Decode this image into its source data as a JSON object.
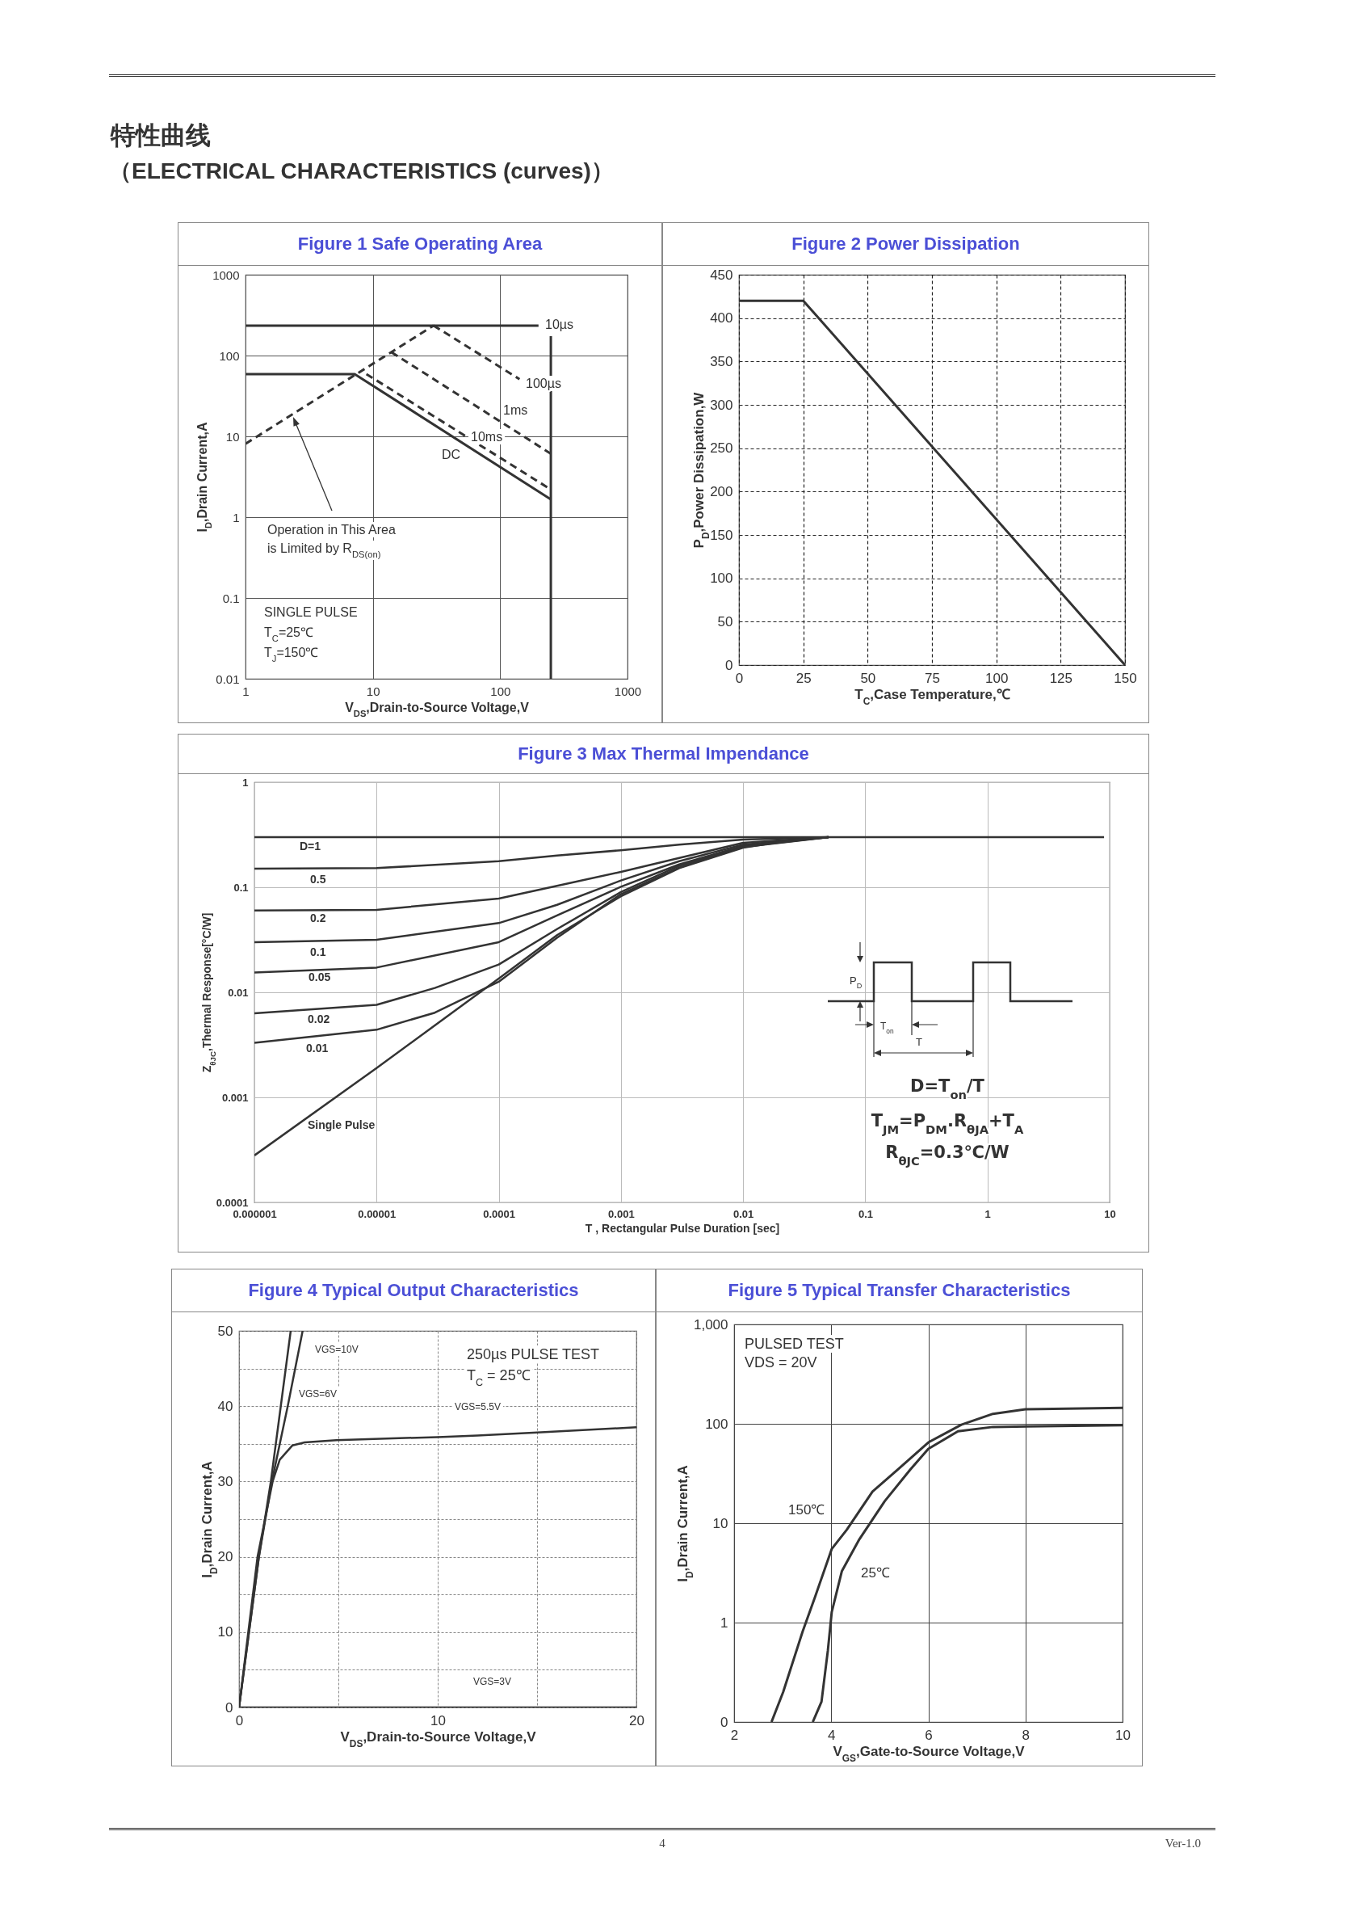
{
  "chart_data": [
    {
      "type": "other",
      "title": "特性曲线",
      "subtitle": "（ELECTRICAL CHARACTERISTICS (curves)）"
    },
    {
      "type": "line",
      "title": "Figure 1 Safe Operating Area",
      "xlabel": "V$_{DS}$,Drain-to-Source Voltage,V",
      "ylabel": "I$_{D}$,Drain Current,A",
      "log": "xy",
      "xlim": [
        1,
        1000
      ],
      "ylim": [
        0.01,
        1000
      ],
      "xticks": [
        1,
        10,
        100,
        1000
      ],
      "yticks": [
        0.01,
        0.1,
        1,
        10,
        100,
        1000
      ],
      "grid": true,
      "series": [
        {
          "color": "#333333",
          "line_style": "dashed",
          "x": [
            1,
            30
          ],
          "values": [
            8.1,
            235
          ]
        },
        {
          "color": "#333333",
          "x": [
            1,
            200
          ],
          "values": [
            235,
            235
          ]
        },
        {
          "color": "#333333",
          "line_style": "dashed",
          "x": [
            30,
            142
          ],
          "values": [
            235,
            51
          ]
        },
        {
          "color": "#333333",
          "line_style": "dashed",
          "x": [
            14,
            250
          ],
          "values": [
            110,
            6.1
          ]
        },
        {
          "color": "#333333",
          "line_style": "dashed",
          "x": [
            8.9,
            250
          ],
          "values": [
            59,
            2.2
          ]
        },
        {
          "color": "#333333",
          "x": [
            1,
            7.2,
            250
          ],
          "values": [
            59,
            59,
            1.66
          ]
        },
        {
          "color": "#333333",
          "x": [
            250,
            250
          ],
          "values": [
            0.01,
            174
          ]
        }
      ],
      "annotations": [
        "10µs",
        "100µs",
        "1ms",
        "10ms",
        "DC",
        "Operation in This Area",
        "is Limited by R$_{DS(on)}$",
        "SINGLE PULSE",
        "T$_{C}$=25℃",
        "T$_{J}$=150℃"
      ]
    },
    {
      "type": "line",
      "title": "Figure 2 Power Dissipation",
      "xlabel": "T$_{C}$,Case Temperature,℃",
      "ylabel": "P$_{D}$,Power Dissipation,W",
      "xlim": [
        0,
        150
      ],
      "ylim": [
        0,
        450
      ],
      "xticks": [
        0,
        25,
        50,
        75,
        100,
        125,
        150
      ],
      "yticks": [
        0,
        50,
        100,
        150,
        200,
        250,
        300,
        350,
        400,
        450
      ],
      "grid": true,
      "series": [
        {
          "color": "#333333",
          "x": [
            0,
            25,
            150
          ],
          "values": [
            420,
            420,
            0
          ]
        }
      ]
    },
    {
      "type": "line",
      "title": "Figure 3 Max Thermal Impendance",
      "xlabel": "T , Rectangular Pulse Duration [sec]",
      "ylabel": "Z$_{θJC}$,Thermal Response[°C/W]",
      "log": "xy",
      "xlim": [
        1e-06,
        10
      ],
      "ylim": [
        0.0001,
        1
      ],
      "xticks": [
        {
          "value": 1e-06,
          "label": "0.000001"
        },
        {
          "value": 1e-05,
          "label": "0.00001"
        },
        {
          "value": 0.0001,
          "label": "0.0001"
        },
        0.001,
        0.01,
        0.1,
        1,
        10
      ],
      "yticks": [
        {
          "value": 0.0001,
          "label": "0.0001"
        },
        0.001,
        0.01,
        0.1,
        1
      ],
      "grid": true,
      "series": [
        {
          "color": "#333333",
          "x": [
            1e-06,
            9
          ],
          "values": [
            0.3,
            0.3
          ]
        },
        {
          "color": "#333333",
          "x": [
            1e-06,
            1e-05,
            0.0001,
            0.0003,
            0.001,
            0.003,
            0.01,
            0.05
          ],
          "values": [
            0.15,
            0.152,
            0.177,
            0.2,
            0.225,
            0.255,
            0.284,
            0.3
          ]
        },
        {
          "color": "#333333",
          "x": [
            1e-06,
            1e-05,
            0.0001,
            0.0003,
            0.001,
            0.003,
            0.01,
            0.05
          ],
          "values": [
            0.06,
            0.061,
            0.078,
            0.103,
            0.14,
            0.19,
            0.265,
            0.3
          ]
        },
        {
          "color": "#333333",
          "x": [
            1e-06,
            1e-05,
            0.0001,
            0.0003,
            0.001,
            0.003,
            0.01,
            0.05
          ],
          "values": [
            0.03,
            0.0316,
            0.0456,
            0.068,
            0.116,
            0.177,
            0.255,
            0.3
          ]
        },
        {
          "color": "#333333",
          "x": [
            1e-06,
            1e-05,
            0.0001,
            0.0003,
            0.001,
            0.003,
            0.01,
            0.05
          ],
          "values": [
            0.0154,
            0.0172,
            0.03,
            0.054,
            0.101,
            0.165,
            0.248,
            0.3
          ]
        },
        {
          "color": "#333333",
          "x": [
            1e-06,
            1e-05,
            3e-05,
            0.0001,
            0.0003,
            0.001,
            0.003,
            0.01,
            0.05
          ],
          "values": [
            0.0063,
            0.0076,
            0.011,
            0.0184,
            0.04,
            0.09,
            0.16,
            0.244,
            0.3
          ]
        },
        {
          "color": "#333333",
          "x": [
            1e-06,
            1e-05,
            3e-05,
            0.0001,
            0.0003,
            0.001,
            0.003,
            0.01,
            0.05
          ],
          "values": [
            0.0033,
            0.0044,
            0.0064,
            0.0126,
            0.033,
            0.086,
            0.154,
            0.241,
            0.3
          ]
        },
        {
          "color": "#333333",
          "x": [
            1e-06,
            1e-05,
            0.0001,
            0.0003,
            0.001,
            0.003,
            0.01,
            0.03,
            0.05
          ],
          "values": [
            0.00028,
            0.0019,
            0.0135,
            0.035,
            0.082,
            0.152,
            0.238,
            0.29,
            0.3
          ]
        }
      ],
      "annotations": [
        "D=1",
        "0.5",
        "0.2",
        "0.1",
        "0.05",
        "0.02",
        "0.01",
        "Single Pulse",
        "P$_{D}$",
        "T$_{on}$",
        "T",
        "D=T$_{on}$/T",
        "T$_{JM}$=P$_{DM}$.R$_{θJA}$+T$_{A}$",
        "R$_{θJC}$=0.3℃/W"
      ]
    },
    {
      "type": "line",
      "title": "Figure 4 Typical Output Characteristics",
      "xlabel": "V$_{DS}$,Drain-to-Source Voltage,V",
      "ylabel": "I$_{D}$,Drain Current,A",
      "xlim": [
        0,
        20
      ],
      "ylim": [
        0,
        50
      ],
      "xticks": [
        0,
        {
          "value": 5,
          "label": null
        },
        10,
        {
          "value": 15,
          "label": null
        },
        20
      ],
      "yticks": [
        0,
        {
          "value": 5,
          "label": null
        },
        10,
        {
          "value": 15,
          "label": null
        },
        20,
        {
          "value": 25,
          "label": null
        },
        30,
        {
          "value": 35,
          "label": null
        },
        40,
        {
          "value": 45,
          "label": null
        },
        50
      ],
      "grid": true,
      "series": [
        {
          "color": "#333333",
          "x": [
            0,
            1,
            1.6,
            2.6
          ],
          "values": [
            0,
            20,
            30,
            50
          ]
        },
        {
          "color": "#333333",
          "x": [
            0,
            1,
            1.65,
            2.45,
            3.2
          ],
          "values": [
            0,
            20,
            30,
            40,
            50
          ]
        },
        {
          "color": "#333333",
          "x": [
            0,
            0.93,
            1.69,
            2.05,
            2.69,
            3.3,
            4.9,
            10,
            12,
            15,
            20
          ],
          "values": [
            0,
            20,
            30,
            32.9,
            34.8,
            35.2,
            35.5,
            35.9,
            36.1,
            36.5,
            37.2
          ]
        },
        {
          "color": "#333333",
          "x": [
            0,
            20
          ],
          "values": [
            0,
            0
          ]
        }
      ],
      "annotations": [
        "VGS=10V",
        "VGS=6V",
        "VGS=5.5V",
        "VGS=3V",
        "250µs PULSE TEST",
        "T$_{C}$ = 25℃"
      ]
    },
    {
      "type": "line",
      "title": "Figure 5 Typical Transfer Characteristics",
      "xlabel": "V$_{GS}$,Gate-to-Source Voltage,V",
      "ylabel": "I$_{D}$,Drain Current,A",
      "log": "y",
      "xlim": [
        2,
        10
      ],
      "ylim": [
        0.1,
        1000
      ],
      "xticks": [
        2,
        4,
        6,
        8,
        10
      ],
      "yticks": [
        {
          "value": 0.1,
          "label": "0"
        },
        1,
        10,
        100,
        {
          "value": 1000,
          "label": "1,000"
        }
      ],
      "grid": true,
      "series": [
        {
          "color": "#333333",
          "x": [
            2.77,
            3.01,
            3.41,
            3.67,
            4.01,
            4.32,
            4.85,
            5.37,
            6,
            6.68,
            7.33,
            8,
            10
          ],
          "values": [
            0.1,
            0.2,
            0.81,
            1.83,
            5.5,
            8.6,
            20.8,
            34.7,
            65,
            98,
            126,
            140,
            145
          ]
        },
        {
          "color": "#333333",
          "x": [
            3.62,
            3.8,
            3.93,
            4.01,
            4.22,
            4.58,
            5.1,
            5.63,
            6,
            6.61,
            7.33,
            10
          ],
          "values": [
            0.1,
            0.16,
            0.52,
            1.27,
            3.3,
            6.9,
            16.6,
            34.7,
            56,
            84,
            93,
            97
          ]
        }
      ],
      "annotations": [
        "150℃",
        "25℃",
        "PULSED TEST",
        "VDS = 20V"
      ]
    },
    {
      "type": "other",
      "annotations": [
        "4",
        "Ver-1.0"
      ]
    }
  ]
}
